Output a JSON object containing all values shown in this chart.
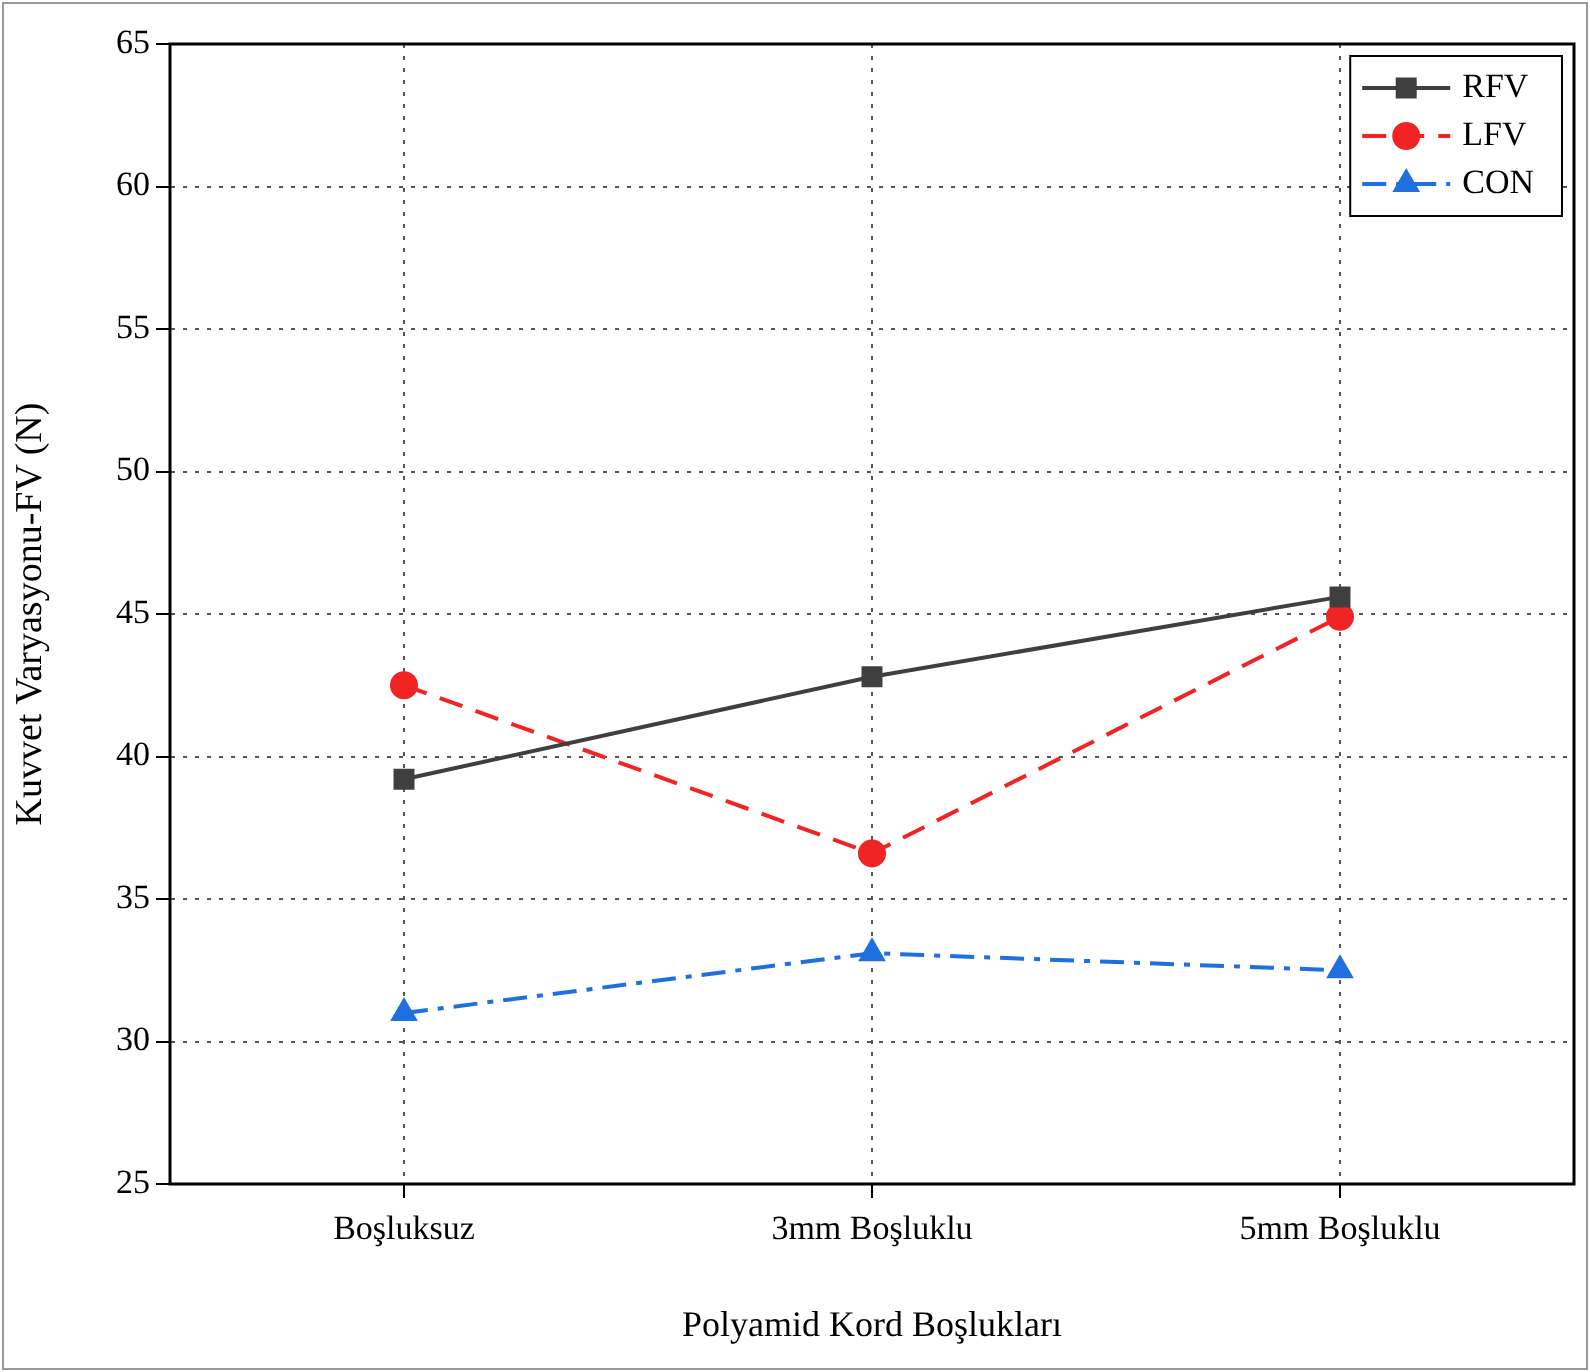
{
  "chart_data": {
    "type": "line",
    "xlabel": "Polyamid Kord Boşlukları",
    "ylabel": "Kuvvet Varyasyonu-FV (N)",
    "categories": [
      "Boşluksuz",
      "3mm Boşluklu",
      "5mm Boşluklu"
    ],
    "series": [
      {
        "name": "RFV",
        "color": "#3f3f3f",
        "values": [
          39.2,
          42.8,
          45.6
        ],
        "marker": "square",
        "line_style": "solid"
      },
      {
        "name": "LFV",
        "color": "#f02424",
        "values": [
          42.5,
          36.6,
          44.9
        ],
        "marker": "circle",
        "line_style": "dashed"
      },
      {
        "name": "CON",
        "color": "#1f6fe0",
        "values": [
          31.0,
          33.1,
          32.5
        ],
        "marker": "triangle",
        "line_style": "dashdot"
      }
    ],
    "ylim": [
      25,
      65
    ],
    "yticks": [
      25,
      30,
      35,
      40,
      45,
      50,
      55,
      60,
      65
    ],
    "grid": true,
    "legend": "top right"
  }
}
